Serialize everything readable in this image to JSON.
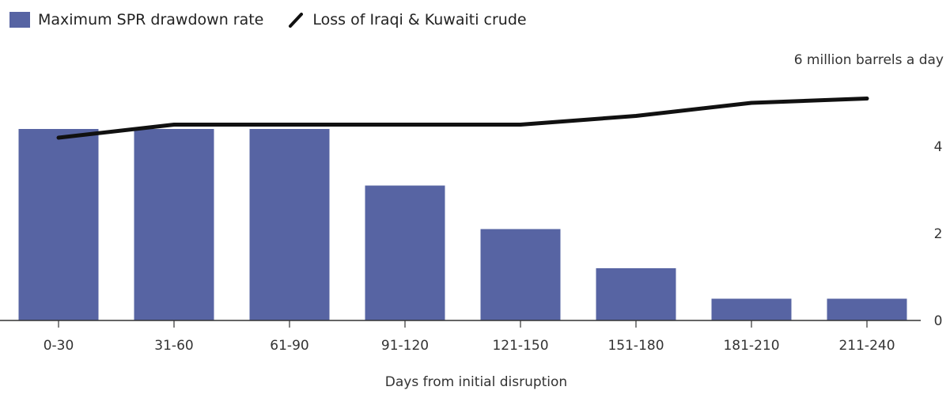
{
  "legend": {
    "bar_label": "Maximum SPR drawdown rate",
    "line_label": "Loss of Iraqi & Kuwaiti crude"
  },
  "colors": {
    "bar": "#5764a3",
    "line": "#111111",
    "axis": "#333333",
    "grid": "#bbbbbb"
  },
  "chart_data": {
    "type": "bar",
    "title": "",
    "xlabel": "Days from initial disruption",
    "ylabel": "",
    "unit_label": "6 million barrels a day",
    "categories": [
      "0-30",
      "31-60",
      "61-90",
      "91-120",
      "121-150",
      "151-180",
      "181-210",
      "211-240"
    ],
    "series": [
      {
        "name": "Maximum SPR drawdown rate",
        "type": "bar",
        "values": [
          4.4,
          4.4,
          4.4,
          3.1,
          2.1,
          1.2,
          0.5,
          0.5
        ]
      },
      {
        "name": "Loss of Iraqi & Kuwaiti crude",
        "type": "line",
        "values": [
          4.2,
          4.5,
          4.5,
          4.5,
          4.5,
          4.7,
          5.0,
          5.1
        ]
      }
    ],
    "yticks": [
      0,
      2,
      4,
      6
    ],
    "ylim": [
      0,
      6
    ],
    "grid": false,
    "legend_position": "top-left"
  }
}
